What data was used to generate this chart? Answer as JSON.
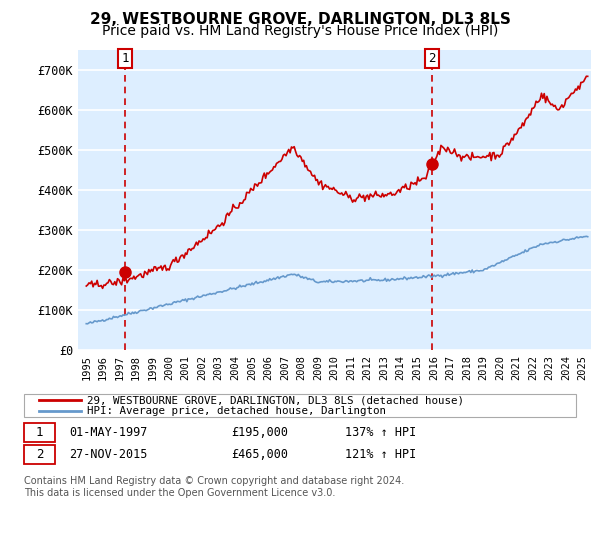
{
  "title": "29, WESTBOURNE GROVE, DARLINGTON, DL3 8LS",
  "subtitle": "Price paid vs. HM Land Registry's House Price Index (HPI)",
  "xlim_start": 1994.5,
  "xlim_end": 2025.5,
  "ylim": [
    0,
    750000
  ],
  "yticks": [
    0,
    100000,
    200000,
    300000,
    400000,
    500000,
    600000,
    700000
  ],
  "ytick_labels": [
    "£0",
    "£100K",
    "£200K",
    "£300K",
    "£400K",
    "£500K",
    "£600K",
    "£700K"
  ],
  "xtick_years": [
    1995,
    1996,
    1997,
    1998,
    1999,
    2000,
    2001,
    2002,
    2003,
    2004,
    2005,
    2006,
    2007,
    2008,
    2009,
    2010,
    2011,
    2012,
    2013,
    2014,
    2015,
    2016,
    2017,
    2018,
    2019,
    2020,
    2021,
    2022,
    2023,
    2024,
    2025
  ],
  "sale1_x": 1997.33,
  "sale1_y": 195000,
  "sale1_label": "1",
  "sale2_x": 2015.9,
  "sale2_y": 465000,
  "sale2_label": "2",
  "red_line_color": "#cc0000",
  "blue_line_color": "#6699cc",
  "dashed_line_color": "#cc0000",
  "plot_bg_color": "#ddeeff",
  "grid_color": "#ffffff",
  "legend_line1": "29, WESTBOURNE GROVE, DARLINGTON, DL3 8LS (detached house)",
  "legend_line2": "HPI: Average price, detached house, Darlington",
  "table_row1": [
    "1",
    "01-MAY-1997",
    "£195,000",
    "137% ↑ HPI"
  ],
  "table_row2": [
    "2",
    "27-NOV-2015",
    "£465,000",
    "121% ↑ HPI"
  ],
  "footer_text": "Contains HM Land Registry data © Crown copyright and database right 2024.\nThis data is licensed under the Open Government Licence v3.0.",
  "title_fontsize": 11,
  "subtitle_fontsize": 10
}
